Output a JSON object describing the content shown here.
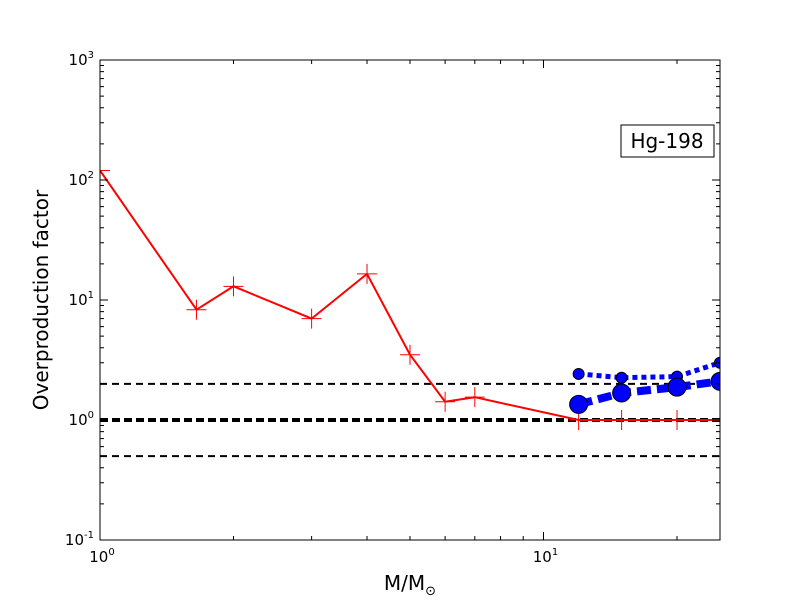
{
  "chart_data": {
    "type": "line",
    "annotation": "Hg-198",
    "xlabel": {
      "base": "M/M",
      "subscript": "⊙"
    },
    "ylabel": "Overproduction factor",
    "xscale": "log",
    "yscale": "log",
    "xlim": [
      1,
      25
    ],
    "ylim": [
      0.1,
      1000
    ],
    "x_ticks": [
      {
        "value": 1,
        "base": "10",
        "exp": "0"
      },
      {
        "value": 10,
        "base": "10",
        "exp": "1"
      }
    ],
    "y_ticks": [
      {
        "value": 0.1,
        "base": "10",
        "exp": "-1"
      },
      {
        "value": 1,
        "base": "10",
        "exp": "0"
      },
      {
        "value": 10,
        "base": "10",
        "exp": "1"
      },
      {
        "value": 100,
        "base": "10",
        "exp": "2"
      },
      {
        "value": 1000,
        "base": "10",
        "exp": "3"
      }
    ],
    "reference_lines": [
      {
        "y": 2,
        "style": "dashed",
        "weight": "thin"
      },
      {
        "y": 1,
        "style": "dashed",
        "weight": "thick"
      },
      {
        "y": 0.5,
        "style": "dashed",
        "weight": "thin"
      }
    ],
    "series": [
      {
        "color": "#ff0000",
        "line": "solid",
        "marker": "plus",
        "points": [
          [
            1.0,
            120
          ],
          [
            1.65,
            8.3
          ],
          [
            2.0,
            13.0
          ],
          [
            3.0,
            7.0
          ],
          [
            4.0,
            16.5
          ],
          [
            5.0,
            3.5
          ],
          [
            6.0,
            1.42
          ],
          [
            7.0,
            1.55
          ],
          [
            12.0,
            1.0
          ],
          [
            15.0,
            1.0
          ],
          [
            20.0,
            1.0
          ],
          [
            25.0,
            1.0
          ]
        ]
      },
      {
        "color": "#0000ff",
        "line": "dotted-thick",
        "marker": "circle-small",
        "points": [
          [
            12.0,
            2.42
          ],
          [
            15.0,
            2.25
          ],
          [
            20.0,
            2.3
          ],
          [
            25.0,
            3.0
          ]
        ]
      },
      {
        "color": "#0000ff",
        "line": "dashed-thick",
        "marker": "circle-large",
        "points": [
          [
            12.0,
            1.35
          ],
          [
            15.0,
            1.68
          ],
          [
            20.0,
            1.88
          ],
          [
            25.0,
            2.1
          ]
        ]
      }
    ]
  }
}
